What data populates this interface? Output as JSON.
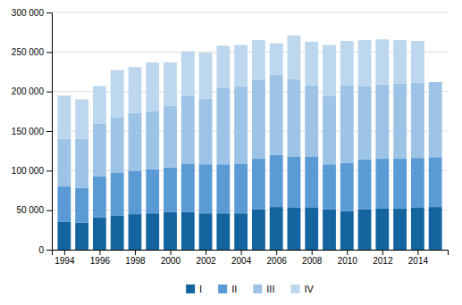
{
  "chart_data": {
    "type": "bar",
    "stacked": true,
    "grid": true,
    "legend": "bottom",
    "x": [
      1994,
      1995,
      1996,
      1997,
      1998,
      1999,
      2000,
      2001,
      2002,
      2003,
      2004,
      2005,
      2006,
      2007,
      2008,
      2009,
      2010,
      2011,
      2012,
      2013,
      2014,
      2015
    ],
    "series": [
      {
        "name": "I",
        "color": "#1464a0",
        "values": [
          35000,
          34000,
          41000,
          43000,
          45000,
          46000,
          48000,
          48000,
          46000,
          46000,
          46000,
          51000,
          54000,
          53000,
          53000,
          51000,
          49000,
          51000,
          52000,
          52000,
          53000,
          54000
        ]
      },
      {
        "name": "II",
        "color": "#5b9bd5",
        "values": [
          45000,
          44000,
          52000,
          54000,
          55000,
          56000,
          56000,
          61000,
          62000,
          62000,
          63000,
          64000,
          66000,
          65000,
          65000,
          57000,
          61000,
          63000,
          63000,
          63000,
          63000,
          63000
        ]
      },
      {
        "name": "III",
        "color": "#9dc3e6",
        "values": [
          60000,
          62000,
          66000,
          70000,
          73000,
          73000,
          78000,
          85000,
          83000,
          97000,
          98000,
          100000,
          101000,
          98000,
          90000,
          86000,
          98000,
          93000,
          94000,
          95000,
          95000,
          95000
        ]
      },
      {
        "name": "IV",
        "color": "#bdd7ee",
        "values": [
          55000,
          50000,
          48000,
          60000,
          58000,
          62000,
          55000,
          57000,
          58000,
          53000,
          52000,
          50000,
          40000,
          55000,
          55000,
          65000,
          56000,
          58000,
          57000,
          55000,
          53000,
          0
        ]
      }
    ],
    "xlim": [
      1993.3,
      2015.7
    ],
    "xticks": [
      1994,
      1996,
      1998,
      2000,
      2002,
      2004,
      2006,
      2008,
      2010,
      2012,
      2014
    ],
    "ylim": [
      0,
      300000
    ],
    "yticks": [
      0,
      {
        "value": 50000,
        "label": "50 000"
      },
      {
        "value": 100000,
        "label": "100 000"
      },
      {
        "value": 150000,
        "label": "150 000"
      },
      {
        "value": 200000,
        "label": "200 000"
      },
      {
        "value": 250000,
        "label": "250 000"
      },
      {
        "value": 300000,
        "label": "300 000"
      }
    ]
  }
}
